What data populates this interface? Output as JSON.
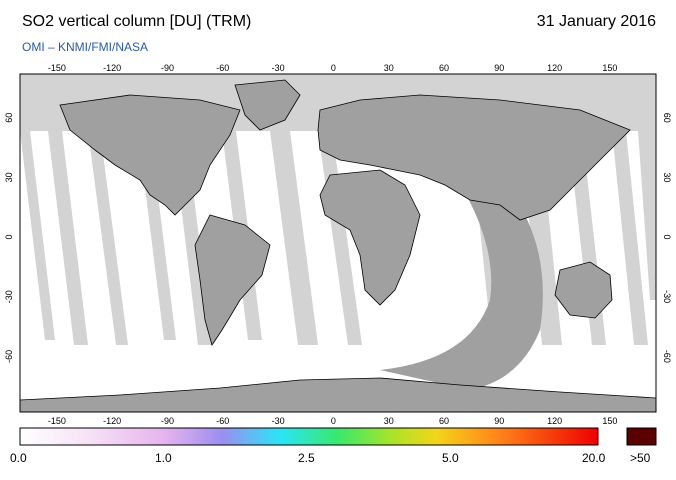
{
  "header": {
    "title": "SO2 vertical column [DU] (TRM)",
    "date": "31 January 2016",
    "credit": "OMI  –  KNMI/FMI/NASA"
  },
  "map": {
    "lon_ticks": [
      "-150",
      "-120",
      "-90",
      "-60",
      "-30",
      "0",
      "30",
      "60",
      "90",
      "120",
      "150"
    ],
    "lat_ticks": [
      "60",
      "30",
      "0",
      "-30",
      "-60"
    ],
    "land_color": "#a0a0a0",
    "polar_fill_color": "#d3d3d3",
    "swath_gap_color": "#d3d3d3",
    "ocean_color": "#ffffff"
  },
  "colorbar": {
    "labels": [
      "0.0",
      "1.0",
      "2.5",
      "5.0",
      "20.0",
      ">50"
    ],
    "overflow_color": "#5a0000"
  }
}
